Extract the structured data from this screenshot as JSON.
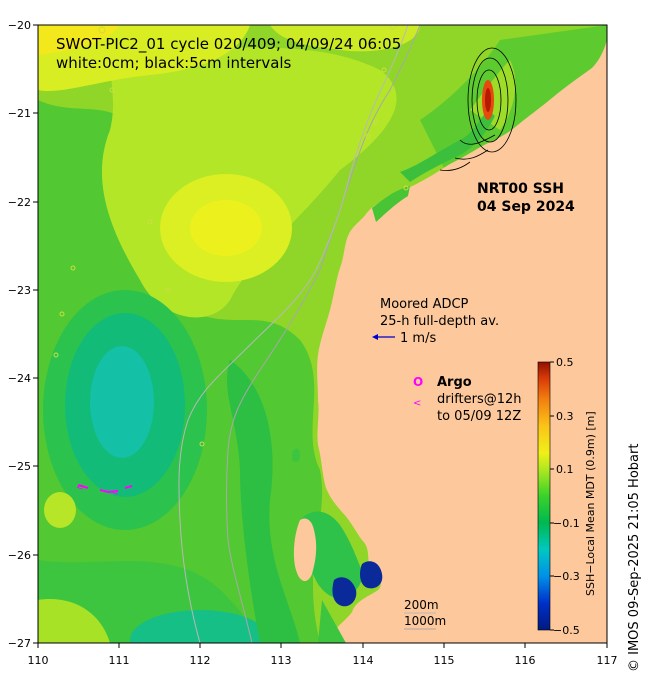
{
  "map": {
    "title_line1": "SWOT-PIC2_01 cycle 020/409; 04/09/24 06:05",
    "title_line2": "white:0cm; black:5cm intervals",
    "product_line1": "NRT00 SSH",
    "product_line2": "04 Sep 2024",
    "adcp_line1": "Moored ADCP",
    "adcp_line2": "25-h full-depth av.",
    "adcp_scale": "1 m/s",
    "argo_symbol": "O",
    "argo_label": "Argo",
    "drifter_symbol": "<",
    "drifters_line1": "drifters@12h",
    "drifters_line2": "to 05/09 12Z",
    "isobath_200": "200m",
    "isobath_1000": "1000m",
    "credit": "© IMOS 09-Sep-2025 21:05 Hobart",
    "colors": {
      "land": "#fdc99c",
      "isobath": "#a8a8a8",
      "adcp_arrow": "#0000cc",
      "argo": "#ff00ff",
      "drifter": "#ff00ff"
    }
  },
  "axes": {
    "lon_ticks": [
      "110",
      "111",
      "112",
      "113",
      "114",
      "115",
      "116",
      "117"
    ],
    "lat_ticks": [
      "−20",
      "−21",
      "−22",
      "−23",
      "−24",
      "−25",
      "−26",
      "−27"
    ]
  },
  "colorbar": {
    "label": "SSH−Local Mean MDT (0.9m) [m]",
    "range": [
      -0.5,
      0.5
    ],
    "tick_labels": [
      "0.5",
      "0.3",
      "0.1",
      "−0.1",
      "−0.3",
      "−0.5"
    ],
    "colors": [
      "#001f8c",
      "#0050e0",
      "#00b8e8",
      "#00c8a0",
      "#00b84a",
      "#28d12a",
      "#8fe62a",
      "#e2f01a",
      "#fbd01a",
      "#f59010",
      "#e04808",
      "#a01000"
    ]
  }
}
